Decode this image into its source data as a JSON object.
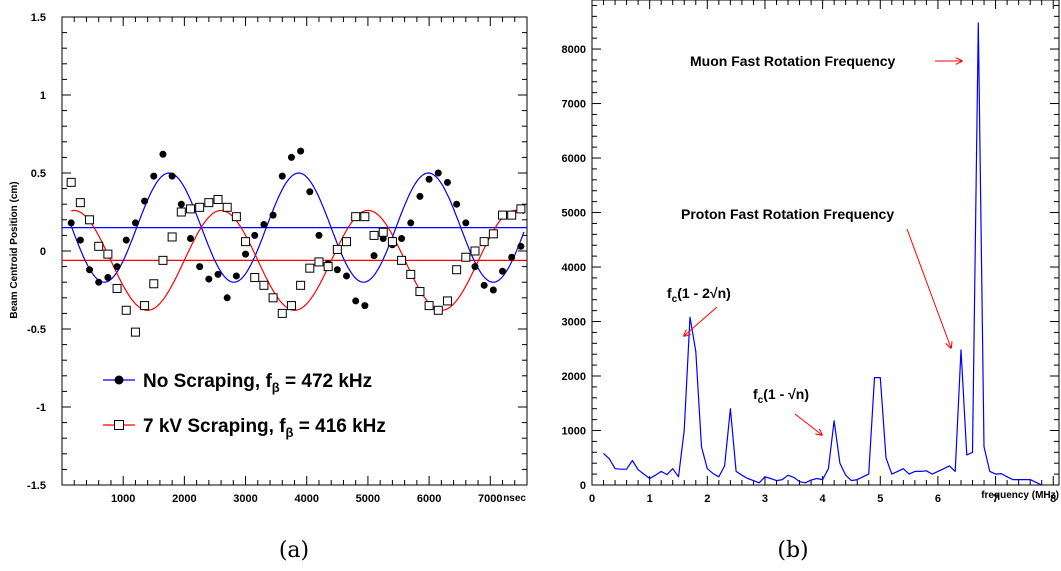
{
  "chart_data": [
    {
      "panel": "a",
      "type": "scatter",
      "caption": "(a)",
      "xlabel": "nsec",
      "ylabel": "Beam Centroid Position (cm)",
      "xlim": [
        0,
        7600
      ],
      "ylim": [
        -1.5,
        1.5
      ],
      "xticks": [
        "1000",
        "2000",
        "3000",
        "4000",
        "5000",
        "6000",
        "7000"
      ],
      "yticks": [
        "-1.5",
        "-1",
        "-0.5",
        "0",
        "0.5",
        "1",
        "1.5"
      ],
      "colors": {
        "no_scraping": "#0000ff",
        "scraping": "#ff0000"
      },
      "legend": [
        {
          "label": "No Scraping, f",
          "sub": "β",
          "value": " = 472 kHz",
          "marker": "filled-circle",
          "color": "#0000ff"
        },
        {
          "label": "7 kV Scraping, f",
          "sub": "β",
          "value": " = 416 kHz",
          "marker": "open-square",
          "color": "#ff0000"
        }
      ],
      "baselines": [
        {
          "series": "no_scraping",
          "y": 0.15
        },
        {
          "series": "scraping",
          "y": -0.06
        }
      ],
      "fits": [
        {
          "series": "no_scraping",
          "offset": 0.15,
          "amplitude": 0.35,
          "period_ns": 2119,
          "peak_at_ns": 1750,
          "x_range": [
            150,
            7550
          ]
        },
        {
          "series": "scraping",
          "offset": -0.06,
          "amplitude": 0.32,
          "period_ns": 2404,
          "peak_at_ns": 2600,
          "x_range": [
            150,
            7550
          ]
        }
      ],
      "series": [
        {
          "name": "No Scraping",
          "marker": "filled-circle",
          "x": [
            150,
            300,
            450,
            600,
            750,
            900,
            1050,
            1200,
            1350,
            1500,
            1650,
            1800,
            1950,
            2100,
            2250,
            2400,
            2550,
            2700,
            2850,
            3000,
            3150,
            3300,
            3450,
            3600,
            3750,
            3900,
            4050,
            4200,
            4350,
            4500,
            4650,
            4800,
            4950,
            5100,
            5250,
            5400,
            5550,
            5700,
            5850,
            6000,
            6150,
            6300,
            6450,
            6600,
            6750,
            6900,
            7050,
            7200,
            7350,
            7500
          ],
          "y": [
            0.18,
            0.07,
            -0.12,
            -0.2,
            -0.17,
            -0.1,
            0.07,
            0.18,
            0.32,
            0.48,
            0.62,
            0.48,
            0.3,
            0.08,
            -0.1,
            -0.18,
            -0.15,
            -0.3,
            -0.16,
            -0.02,
            0.1,
            0.17,
            0.23,
            0.48,
            0.6,
            0.64,
            0.38,
            0.1,
            -0.08,
            -0.12,
            -0.16,
            -0.32,
            -0.35,
            -0.03,
            0.08,
            0.04,
            0.08,
            0.18,
            0.35,
            0.46,
            0.5,
            0.44,
            0.3,
            0.18,
            -0.1,
            -0.22,
            -0.25,
            -0.13,
            -0.04,
            0.03
          ]
        },
        {
          "name": "7 kV Scraping",
          "marker": "open-square",
          "x": [
            150,
            300,
            450,
            600,
            750,
            900,
            1050,
            1200,
            1350,
            1500,
            1650,
            1800,
            1950,
            2100,
            2250,
            2400,
            2550,
            2700,
            2850,
            3000,
            3150,
            3300,
            3450,
            3600,
            3750,
            3900,
            4050,
            4200,
            4350,
            4500,
            4650,
            4800,
            4950,
            5100,
            5250,
            5400,
            5550,
            5700,
            5850,
            6000,
            6150,
            6300,
            6450,
            6600,
            6750,
            6900,
            7050,
            7200,
            7350,
            7500
          ],
          "y": [
            0.44,
            0.31,
            0.2,
            0.03,
            -0.02,
            -0.24,
            -0.38,
            -0.52,
            -0.35,
            -0.21,
            -0.06,
            0.09,
            0.25,
            0.27,
            0.28,
            0.31,
            0.33,
            0.28,
            0.22,
            0.06,
            -0.17,
            -0.22,
            -0.3,
            -0.4,
            -0.35,
            -0.22,
            -0.11,
            -0.07,
            -0.1,
            0.01,
            0.06,
            0.22,
            0.22,
            0.1,
            0.12,
            0.06,
            -0.06,
            -0.15,
            -0.26,
            -0.35,
            -0.38,
            -0.32,
            -0.12,
            -0.04,
            0.0,
            0.06,
            0.11,
            0.23,
            0.23,
            0.27
          ]
        }
      ]
    },
    {
      "panel": "b",
      "type": "line",
      "caption": "(b)",
      "xlabel": "frequency (MHz)",
      "ylabel": "",
      "xlim": [
        0,
        8.1
      ],
      "ylim": [
        0,
        8900
      ],
      "xticks": [
        "0",
        "1",
        "2",
        "3",
        "4",
        "5",
        "6",
        "7",
        "8"
      ],
      "yticks": [
        "0",
        "1000",
        "2000",
        "3000",
        "4000",
        "5000",
        "6000",
        "7000",
        "8000"
      ],
      "color": "#0000ff",
      "annotations": [
        {
          "text": "Muon Fast Rotation Frequency"
        },
        {
          "text": "Proton Fast Rotation Frequency"
        },
        {
          "text": "f",
          "sub": "c",
          "rest": "(1 - 2√n)"
        },
        {
          "text": "f",
          "sub": "c",
          "rest": "(1 - √n)"
        }
      ],
      "series": [
        {
          "x": [
            0.2,
            0.3,
            0.4,
            0.5,
            0.6,
            0.7,
            0.8,
            0.9,
            1.0,
            1.1,
            1.2,
            1.3,
            1.4,
            1.5,
            1.6,
            1.7,
            1.8,
            1.9,
            2.0,
            2.1,
            2.2,
            2.3,
            2.4,
            2.5,
            2.6,
            2.7,
            2.8,
            2.9,
            3.0,
            3.1,
            3.2,
            3.3,
            3.4,
            3.5,
            3.6,
            3.7,
            3.8,
            3.9,
            4.0,
            4.1,
            4.2,
            4.3,
            4.4,
            4.5,
            4.6,
            4.7,
            4.8,
            4.9,
            5.0,
            5.1,
            5.2,
            5.3,
            5.4,
            5.5,
            5.6,
            5.7,
            5.8,
            5.9,
            6.0,
            6.1,
            6.2,
            6.3,
            6.4,
            6.5,
            6.6,
            6.7,
            6.8,
            6.9,
            7.0,
            7.1,
            7.2,
            7.3,
            7.4,
            7.5,
            7.6,
            7.7,
            7.8
          ],
          "y": [
            580,
            480,
            300,
            290,
            290,
            450,
            280,
            200,
            120,
            180,
            250,
            190,
            300,
            150,
            1000,
            3080,
            2450,
            700,
            300,
            210,
            150,
            350,
            1400,
            250,
            180,
            120,
            80,
            40,
            150,
            120,
            80,
            100,
            180,
            140,
            60,
            40,
            90,
            120,
            100,
            300,
            1180,
            400,
            180,
            80,
            100,
            150,
            200,
            1970,
            1970,
            500,
            200,
            250,
            300,
            200,
            250,
            250,
            260,
            200,
            250,
            300,
            350,
            250,
            2480,
            550,
            600,
            8480,
            700,
            250,
            200,
            210,
            150,
            100,
            100,
            100,
            100,
            50,
            0
          ]
        }
      ]
    }
  ]
}
